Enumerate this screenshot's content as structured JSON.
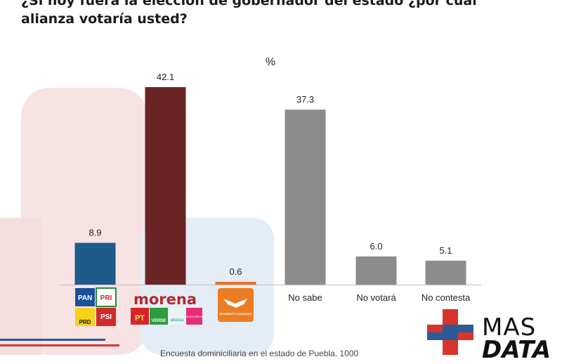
{
  "question": {
    "line1": "¿Si hoy fuera la elección de gobernador del estado ¿por cuál",
    "line2": "alianza votaría usted?"
  },
  "chart_data": {
    "type": "bar",
    "unit_label": "%",
    "categories": [
      "PAN-PRI-PRD-PSI",
      "MORENA-PT-VERDE-NUEVA ALIANZA-FUERZA POR MÉXICO",
      "MOVIMIENTO CIUDADANO",
      "No sabe",
      "No votará",
      "No contesta"
    ],
    "values": [
      8.9,
      42.1,
      0.6,
      37.3,
      6.0,
      5.1
    ],
    "value_labels": [
      "8.9",
      "42.1",
      "0.6",
      "37.3",
      "6.0",
      "5.1"
    ],
    "text_categories": [
      "",
      "",
      "",
      "No sabe",
      "No votará",
      "No contesta"
    ],
    "colors": [
      "#1f5b8a",
      "#6b2424",
      "#e8742a",
      "#8c8c8c",
      "#8c8c8c",
      "#8c8c8c"
    ],
    "ylim": [
      0,
      45
    ]
  },
  "logos": {
    "pan": "PAN",
    "prd": "PRD",
    "pri": "PRI",
    "psi": "PSI",
    "morena": "morena",
    "pt": "PT",
    "verde": "VERDE",
    "nueva_alianza": "alianza",
    "fuerza": "FUERZA MÉXICO",
    "mc": "MOVIMIENTO CIUDADANO"
  },
  "brand": {
    "line1": "MAS",
    "line2": "DATA"
  },
  "footnote": "Encuesta dominiciliaria en el estado de Puebla. 1000"
}
